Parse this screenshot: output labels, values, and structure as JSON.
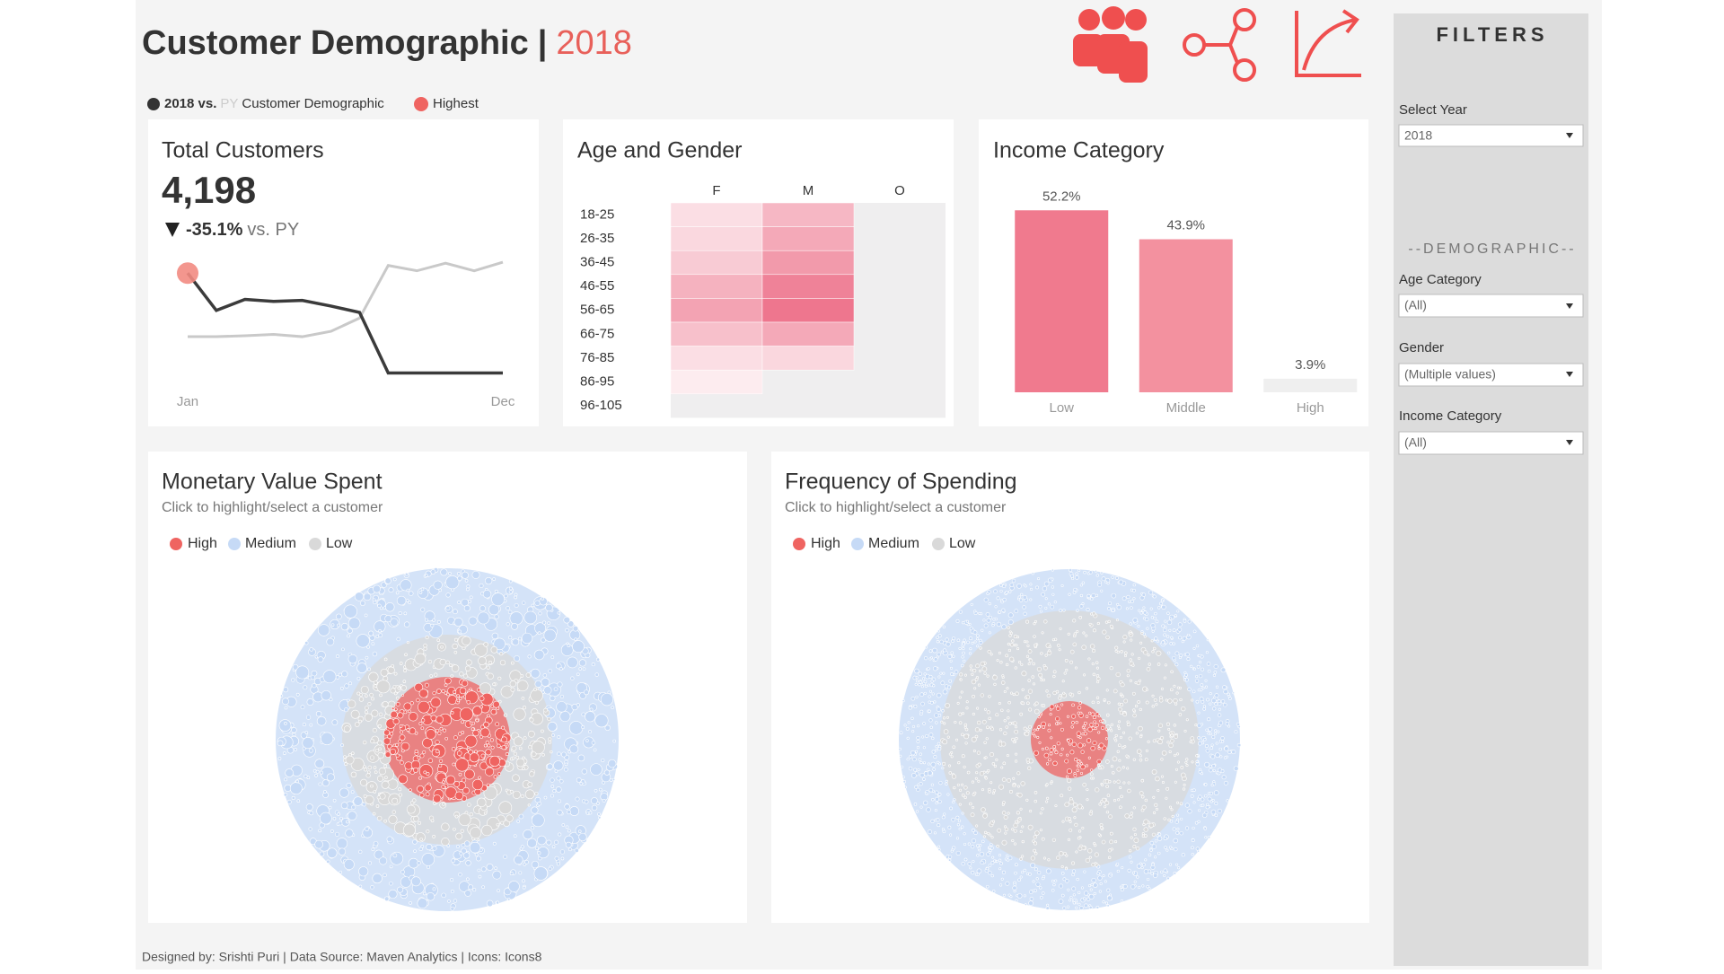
{
  "header": {
    "title": "Customer Demographic",
    "separator": "|",
    "year": "2018"
  },
  "legend": {
    "current": "2018 vs.",
    "previous": "PY",
    "label": "Customer Demographic",
    "highlight": "Highest"
  },
  "total_customers": {
    "title": "Total Customers",
    "value": "4,198",
    "change": "-35.1%",
    "change_suffix": "vs. PY",
    "chart": {
      "type": "line",
      "categories": [
        "Jan",
        null,
        null,
        null,
        null,
        null,
        null,
        null,
        null,
        null,
        null,
        "Dec"
      ],
      "series": [
        {
          "color": "#3b3b3b",
          "values": [
            500,
            388,
            421,
            415,
            418,
            401,
            382,
            200,
            200,
            200,
            200,
            200
          ]
        },
        {
          "color": "#c9c9c9",
          "values": [
            309,
            309,
            312,
            316,
            309,
            325,
            365,
            523,
            507,
            530,
            507,
            533
          ]
        }
      ],
      "ylim": [
        150,
        560
      ],
      "highlight_color": "#f28b82"
    }
  },
  "age_gender": {
    "title": "Age and Gender",
    "chart": {
      "type": "heatmap",
      "columns": [
        "F",
        "M",
        "O"
      ],
      "rows": [
        "18-25",
        "26-35",
        "36-45",
        "46-55",
        "56-65",
        "66-75",
        "76-85",
        "86-95",
        "96-105"
      ],
      "values": [
        [
          22,
          48,
          null
        ],
        [
          26,
          58,
          null
        ],
        [
          35,
          68,
          null
        ],
        [
          52,
          84,
          null
        ],
        [
          62,
          92,
          null
        ],
        [
          42,
          58,
          null
        ],
        [
          22,
          27,
          null
        ],
        [
          13,
          null,
          null
        ],
        [
          null,
          null,
          null
        ]
      ],
      "range": [
        0,
        100
      ],
      "color": "#ec6a84",
      "empty_color": "#efeeef"
    }
  },
  "income": {
    "title": "Income Category",
    "chart": {
      "type": "bar",
      "categories": [
        "Low",
        "Middle",
        "High"
      ],
      "values": [
        52.2,
        43.9,
        3.9
      ],
      "value_labels": [
        "52.2%",
        "43.9%",
        "3.9%"
      ],
      "colors": [
        "#f07a8e",
        "#f3919f",
        "#efefef"
      ],
      "ylim": [
        0,
        60
      ]
    }
  },
  "monetary": {
    "title": "Monetary Value Spent",
    "subtitle": "Click to highlight/select a customer",
    "legend": [
      {
        "name": "High",
        "color": "#ef6461"
      },
      {
        "name": "Medium",
        "color": "#c6daf6"
      },
      {
        "name": "Low",
        "color": "#d9d9d9"
      }
    ]
  },
  "frequency": {
    "title": "Frequency of Spending",
    "subtitle": "Click to highlight/select a customer",
    "legend": [
      {
        "name": "High",
        "color": "#ef6461"
      },
      {
        "name": "Medium",
        "color": "#c6daf6"
      },
      {
        "name": "Low",
        "color": "#d9d9d9"
      }
    ]
  },
  "filters": {
    "title": "FILTERS",
    "select_year": {
      "label": "Select Year",
      "value": "2018"
    },
    "section": "--DEMOGRAPHIC--",
    "age_category": {
      "label": "Age Category",
      "value": "(All)"
    },
    "gender": {
      "label": "Gender",
      "value": "(Multiple values)"
    },
    "income_category": {
      "label": "Income Category",
      "value": "(All)"
    }
  },
  "footer": "Designed by: Srishti Puri | Data Source: Maven Analytics | Icons: Icons8"
}
